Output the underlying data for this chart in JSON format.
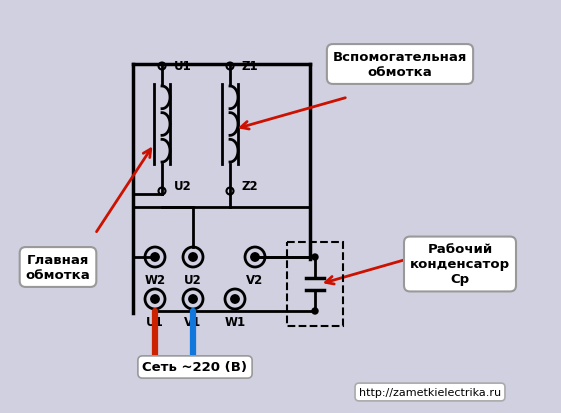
{
  "bg_color": "#d0d0e0",
  "url_text": "http://zametkielectrika.ru",
  "net_text": "Сеть ~220 (В)",
  "label_glavnaya": "Главная\nобмотка",
  "label_vspom": "Вспомогательная\nобмотка",
  "label_cond": "Рабочий\nконденсатор\nСр",
  "lw": 2.0,
  "coil_lw": 2.0
}
